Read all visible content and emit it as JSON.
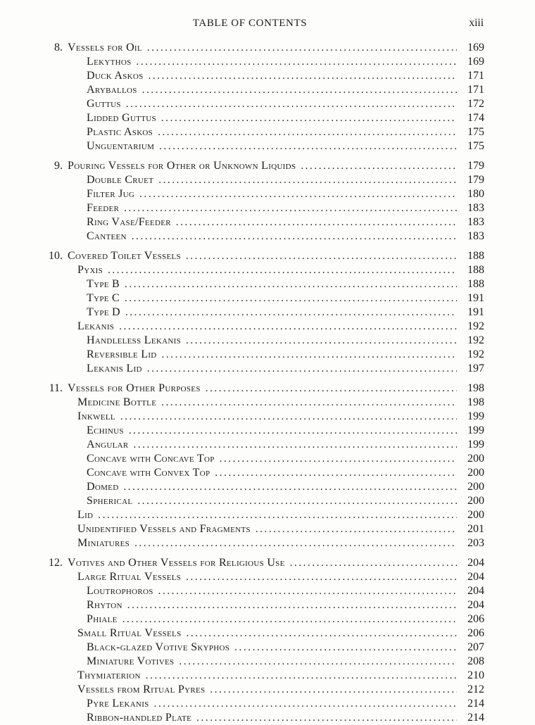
{
  "page": {
    "header_title": "TABLE OF CONTENTS",
    "page_number": "xiii"
  },
  "colors": {
    "ink": "#1b1b1b",
    "paper": "#fdfdfc"
  },
  "toc": {
    "chapters": [
      {
        "number": "8.",
        "title": "Vessels for Oil",
        "page": "169",
        "entries": [
          {
            "label": "Lekythos",
            "page": "169",
            "level": 2
          },
          {
            "label": "Duck Askos",
            "page": "171",
            "level": 2
          },
          {
            "label": "Aryballos",
            "page": "171",
            "level": 2
          },
          {
            "label": "Guttus",
            "page": "172",
            "level": 2
          },
          {
            "label": "Lidded Guttus",
            "page": "174",
            "level": 2
          },
          {
            "label": "Plastic Askos",
            "page": "175",
            "level": 2
          },
          {
            "label": "Unguentarium",
            "page": "175",
            "level": 2
          }
        ]
      },
      {
        "number": "9.",
        "title": "Pouring Vessels for Other or Unknown Liquids",
        "page": "179",
        "entries": [
          {
            "label": "Double Cruet",
            "page": "179",
            "level": 2
          },
          {
            "label": "Filter Jug",
            "page": "180",
            "level": 2
          },
          {
            "label": "Feeder",
            "page": "183",
            "level": 2
          },
          {
            "label": "Ring Vase/Feeder",
            "page": "183",
            "level": 2
          },
          {
            "label": "Canteen",
            "page": "183",
            "level": 2
          }
        ]
      },
      {
        "number": "10.",
        "title": "Covered Toilet Vessels",
        "page": "188",
        "entries": [
          {
            "label": "Pyxis",
            "page": "188",
            "level": 1
          },
          {
            "label": "Type B",
            "page": "188",
            "level": 2
          },
          {
            "label": "Type C",
            "page": "191",
            "level": 2
          },
          {
            "label": "Type D",
            "page": "191",
            "level": 2
          },
          {
            "label": "Lekanis",
            "page": "192",
            "level": 1
          },
          {
            "label": "Handleless Lekanis",
            "page": "192",
            "level": 2
          },
          {
            "label": "Reversible Lid",
            "page": "192",
            "level": 2
          },
          {
            "label": "Lekanis Lid",
            "page": "197",
            "level": 2
          }
        ]
      },
      {
        "number": "11.",
        "title": "Vessels for Other Purposes",
        "page": "198",
        "entries": [
          {
            "label": "Medicine Bottle",
            "page": "198",
            "level": 1
          },
          {
            "label": "Inkwell",
            "page": "199",
            "level": 1
          },
          {
            "label": "Echinus",
            "page": "199",
            "level": 2
          },
          {
            "label": "Angular",
            "page": "199",
            "level": 2
          },
          {
            "label": "Concave with Concave Top",
            "page": "200",
            "level": 2
          },
          {
            "label": "Concave with Convex Top",
            "page": "200",
            "level": 2
          },
          {
            "label": "Domed",
            "page": "200",
            "level": 2
          },
          {
            "label": "Spherical",
            "page": "200",
            "level": 2
          },
          {
            "label": "Lid",
            "page": "200",
            "level": 1
          },
          {
            "label": "Unidentified Vessels and Fragments",
            "page": "201",
            "level": 1
          },
          {
            "label": "Miniatures",
            "page": "203",
            "level": 1
          }
        ]
      },
      {
        "number": "12.",
        "title": "Votives and Other Vessels for Religious Use",
        "page": "204",
        "entries": [
          {
            "label": "Large Ritual Vessels",
            "page": "204",
            "level": 1
          },
          {
            "label": "Loutrophoros",
            "page": "204",
            "level": 2
          },
          {
            "label": "Rhyton",
            "page": "204",
            "level": 2
          },
          {
            "label": "Phiale",
            "page": "206",
            "level": 2
          },
          {
            "label": "Small Ritual Vessels",
            "page": "206",
            "level": 1
          },
          {
            "label": "Black-glazed Votive Skyphos",
            "page": "207",
            "level": 2
          },
          {
            "label": "Miniature Votives",
            "page": "208",
            "level": 2
          },
          {
            "label": "Thymiaterion",
            "page": "210",
            "level": 1
          },
          {
            "label": "Vessels from Ritual Pyres",
            "page": "212",
            "level": 1
          },
          {
            "label": "Pyre Lekanis",
            "page": "214",
            "level": 2
          },
          {
            "label": "Ribbon-handled Plate",
            "page": "214",
            "level": 2
          }
        ]
      }
    ]
  }
}
